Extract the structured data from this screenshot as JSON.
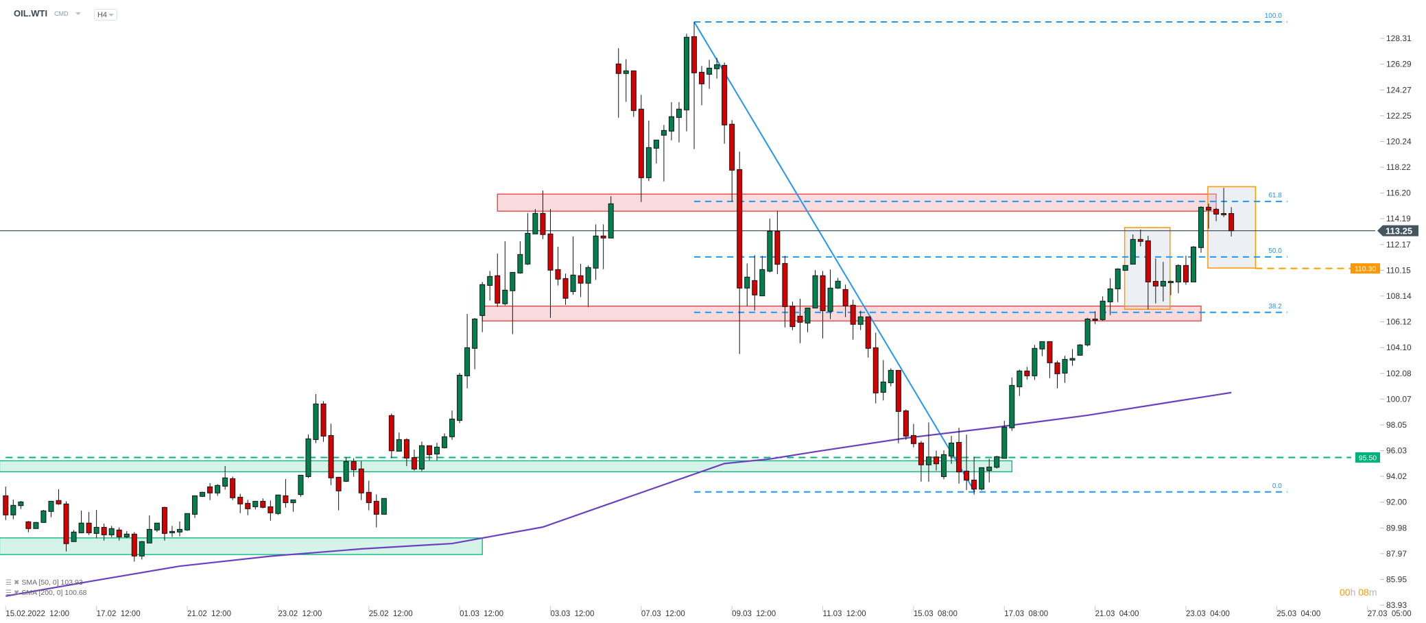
{
  "header": {
    "symbol": "OIL.WTI",
    "class": "CMD",
    "timeframe": "H4"
  },
  "legend": [
    {
      "label": "SMA [50, 0] 103.93"
    },
    {
      "label": "SMA [200, 0] 100.68"
    }
  ],
  "countdown": {
    "hours": "00",
    "h": "h",
    "minutes": "08",
    "m": "m"
  },
  "colors": {
    "up": "#00804f",
    "down": "#d50000",
    "fib": "#2196f3",
    "sma200": "#6a3fc2",
    "orange": "#ff9800",
    "green_zone": "#00b37a",
    "red_zone": "#e53935",
    "price_line": "#455560"
  },
  "chart_data": {
    "type": "candlestick",
    "instrument": "OIL.WTI",
    "interval": "H4",
    "ylim": [
      83.93,
      128.31
    ],
    "y_ticks": [
      "128.31",
      "126.29",
      "124.27",
      "122.25",
      "120.24",
      "118.22",
      "116.20",
      "114.19",
      "112.17",
      "110.15",
      "108.14",
      "106.12",
      "104.10",
      "102.08",
      "100.07",
      "98.05",
      "96.03",
      "94.02",
      "92.00",
      "89.98",
      "87.97",
      "85.95",
      "83.93"
    ],
    "x_ticks": [
      {
        "bar": 0,
        "label": "15.02.2022  12:00"
      },
      {
        "bar": 12,
        "label": "17.02  12:00"
      },
      {
        "bar": 24,
        "label": "21.02  12:00"
      },
      {
        "bar": 36,
        "label": "23.02  12:00"
      },
      {
        "bar": 48,
        "label": "25.02  12:00"
      },
      {
        "bar": 60,
        "label": "01.03  12:00"
      },
      {
        "bar": 72,
        "label": "03.03  12:00"
      },
      {
        "bar": 84,
        "label": "07.03  12:00"
      },
      {
        "bar": 96,
        "label": "09.03  12:00"
      },
      {
        "bar": 108,
        "label": "11.03  12:00"
      },
      {
        "bar": 120,
        "label": "15.03  08:00"
      },
      {
        "bar": 132,
        "label": "17.03  08:00"
      },
      {
        "bar": 144,
        "label": "21.03  04:00"
      },
      {
        "bar": 156,
        "label": "23.03  04:00"
      },
      {
        "bar": 168,
        "label": "25.03  04:00"
      },
      {
        "bar": 180,
        "label": "27.03  05:00"
      }
    ],
    "ohlc": [
      [
        92.5,
        93.22,
        90.6,
        91.0
      ],
      [
        91.0,
        92.2,
        90.66,
        91.75
      ],
      [
        91.73,
        92.09,
        91.46,
        92.02
      ],
      [
        90.46,
        90.53,
        89.64,
        89.93
      ],
      [
        89.93,
        90.45,
        89.93,
        90.41
      ],
      [
        90.41,
        91.39,
        90.41,
        91.32
      ],
      [
        91.27,
        92.1,
        90.82,
        92.07
      ],
      [
        92.13,
        93.0,
        91.79,
        91.86
      ],
      [
        91.86,
        92.07,
        88.14,
        88.75
      ],
      [
        88.91,
        89.82,
        88.91,
        89.66
      ],
      [
        89.6,
        91.34,
        89.6,
        90.36
      ],
      [
        90.36,
        91.23,
        89.43,
        89.6
      ],
      [
        89.55,
        91.39,
        89.17,
        90.03
      ],
      [
        90.03,
        90.32,
        88.99,
        89.44
      ],
      [
        89.44,
        90.14,
        89.26,
        89.93
      ],
      [
        89.82,
        90.03,
        88.99,
        89.28
      ],
      [
        89.28,
        89.73,
        89.19,
        89.5
      ],
      [
        89.5,
        89.66,
        87.35,
        87.78
      ],
      [
        87.78,
        88.96,
        87.51,
        88.91
      ],
      [
        88.8,
        90.96,
        88.8,
        89.87
      ],
      [
        89.82,
        90.36,
        89.66,
        90.36
      ],
      [
        91.59,
        91.64,
        88.99,
        89.55
      ],
      [
        89.6,
        90.14,
        89.28,
        89.71
      ],
      [
        89.66,
        90.48,
        89.32,
        89.87
      ],
      [
        89.82,
        91.11,
        89.75,
        91.11
      ],
      [
        91.05,
        92.5,
        90.77,
        92.5
      ],
      [
        92.45,
        92.82,
        92.4,
        92.77
      ],
      [
        93.2,
        93.48,
        92.16,
        92.72
      ],
      [
        92.72,
        93.41,
        92.5,
        93.31
      ],
      [
        93.25,
        94.83,
        92.98,
        93.9
      ],
      [
        93.84,
        94.0,
        92.16,
        92.34
      ],
      [
        92.39,
        92.66,
        91.14,
        91.86
      ],
      [
        91.91,
        92.18,
        90.98,
        91.48
      ],
      [
        91.64,
        92.07,
        91.43,
        92.07
      ],
      [
        92.07,
        92.29,
        91.52,
        91.59
      ],
      [
        91.64,
        92.13,
        90.55,
        91.16
      ],
      [
        91.11,
        92.56,
        91.0,
        92.56
      ],
      [
        92.5,
        93.81,
        91.57,
        91.96
      ],
      [
        91.96,
        92.18,
        91.25,
        92.18
      ],
      [
        92.59,
        94.11,
        92.43,
        94.11
      ],
      [
        94.0,
        97.3,
        93.9,
        96.96
      ],
      [
        96.9,
        100.46,
        96.62,
        99.69
      ],
      [
        99.69,
        99.91,
        96.72,
        97.17
      ],
      [
        97.22,
        98.14,
        93.34,
        93.9
      ],
      [
        93.95,
        93.95,
        91.36,
        92.88
      ],
      [
        93.63,
        95.51,
        93.58,
        95.18
      ],
      [
        95.18,
        95.45,
        93.99,
        94.54
      ],
      [
        94.6,
        95.22,
        92.16,
        92.72
      ],
      [
        92.77,
        93.68,
        91.36,
        91.96
      ],
      [
        92.07,
        92.61,
        90.02,
        91.05
      ],
      [
        91.05,
        92.29,
        91.05,
        92.29
      ],
      [
        98.78,
        98.94,
        95.45,
        96.02
      ],
      [
        95.99,
        97.45,
        95.99,
        96.9
      ],
      [
        96.9,
        97.0,
        94.82,
        95.45
      ],
      [
        95.49,
        96.11,
        94.47,
        94.59
      ],
      [
        94.59,
        96.74,
        94.43,
        96.42
      ],
      [
        96.42,
        96.42,
        95.27,
        95.72
      ],
      [
        95.77,
        96.65,
        95.27,
        96.31
      ],
      [
        96.26,
        97.38,
        96.2,
        97.12
      ],
      [
        97.12,
        99.17,
        96.88,
        98.51
      ],
      [
        98.4,
        102.12,
        98.19,
        101.94
      ],
      [
        101.89,
        106.74,
        100.91,
        104.09
      ],
      [
        104.04,
        106.42,
        102.41,
        106.34
      ],
      [
        106.61,
        109.24,
        105.31,
        109.03
      ],
      [
        108.97,
        110.1,
        107.78,
        109.67
      ],
      [
        109.73,
        111.46,
        107.29,
        107.58
      ],
      [
        107.53,
        112.43,
        107.4,
        108.6
      ],
      [
        108.55,
        109.99,
        105.15,
        109.99
      ],
      [
        109.94,
        112.43,
        109.89,
        111.39
      ],
      [
        110.64,
        114.63,
        110.57,
        113.05
      ],
      [
        113.0,
        114.95,
        113.0,
        114.61
      ],
      [
        114.61,
        116.4,
        112.6,
        112.95
      ],
      [
        113.0,
        114.95,
        106.43,
        110.16
      ],
      [
        110.21,
        112.0,
        108.96,
        109.46
      ],
      [
        109.51,
        109.89,
        107.45,
        107.96
      ],
      [
        108.49,
        112.8,
        108.24,
        109.78
      ],
      [
        109.73,
        110.66,
        108.06,
        109.14
      ],
      [
        109.14,
        110.53,
        107.26,
        110.37
      ],
      [
        110.32,
        113.75,
        109.4,
        112.84
      ],
      [
        112.84,
        113.75,
        110.24,
        112.68
      ],
      [
        112.68,
        115.95,
        112.68,
        115.36
      ],
      [
        126.31,
        127.54,
        122.1,
        125.56
      ],
      [
        125.56,
        126.68,
        123.34,
        125.77
      ],
      [
        125.77,
        125.77,
        122.16,
        122.66
      ],
      [
        122.77,
        123.89,
        115.5,
        117.4
      ],
      [
        117.4,
        121.87,
        117.13,
        119.76
      ],
      [
        119.71,
        120.35,
        118.51,
        120.35
      ],
      [
        120.73,
        121.53,
        117.11,
        121.1
      ],
      [
        121.05,
        123.32,
        120.33,
        122.18
      ],
      [
        122.12,
        123.32,
        120.17,
        122.77
      ],
      [
        122.71,
        128.67,
        121.03,
        128.4
      ],
      [
        128.45,
        129.6,
        119.64,
        125.61
      ],
      [
        125.66,
        126.15,
        123.07,
        124.75
      ],
      [
        125.5,
        126.63,
        124.36,
        125.98
      ],
      [
        125.93,
        126.79,
        125.16,
        126.25
      ],
      [
        126.2,
        126.42,
        120.07,
        121.53
      ],
      [
        121.59,
        121.91,
        115.52,
        117.99
      ],
      [
        118.04,
        119.44,
        103.6,
        108.76
      ],
      [
        108.76,
        110.69,
        107.35,
        109.62
      ],
      [
        109.35,
        111.34,
        106.99,
        108.22
      ],
      [
        108.15,
        111.28,
        108.15,
        110.21
      ],
      [
        110.08,
        114.2,
        109.99,
        113.21
      ],
      [
        113.21,
        114.82,
        109.85,
        110.62
      ],
      [
        110.69,
        111.28,
        105.68,
        107.31
      ],
      [
        107.35,
        107.7,
        105.47,
        105.74
      ],
      [
        106.56,
        107.92,
        104.45,
        106.08
      ],
      [
        106.02,
        107.2,
        105.31,
        107.2
      ],
      [
        107.2,
        110.17,
        107.2,
        109.73
      ],
      [
        109.73,
        110.1,
        104.82,
        106.99
      ],
      [
        106.94,
        110.21,
        106.33,
        108.76
      ],
      [
        108.76,
        109.56,
        108.7,
        109.3
      ],
      [
        108.65,
        109.03,
        106.49,
        107.36
      ],
      [
        107.42,
        107.85,
        104.72,
        105.92
      ],
      [
        105.92,
        106.99,
        105.47,
        106.51
      ],
      [
        106.51,
        106.51,
        103.32,
        104.04
      ],
      [
        104.09,
        105.27,
        99.73,
        100.55
      ],
      [
        100.6,
        103.12,
        99.96,
        101.41
      ],
      [
        101.35,
        102.48,
        101.07,
        102.32
      ],
      [
        102.32,
        102.32,
        96.61,
        99.1
      ],
      [
        99.15,
        99.26,
        96.88,
        97.17
      ],
      [
        97.22,
        98.13,
        96.29,
        96.58
      ],
      [
        96.63,
        96.79,
        93.6,
        94.92
      ],
      [
        94.92,
        98.24,
        93.6,
        95.54
      ],
      [
        95.54,
        96.04,
        94.47,
        95.0
      ],
      [
        94.0,
        96.06,
        93.79,
        95.72
      ],
      [
        95.61,
        97.19,
        95.0,
        96.63
      ],
      [
        96.68,
        97.83,
        93.45,
        94.36
      ],
      [
        94.43,
        97.29,
        92.95,
        93.72
      ],
      [
        93.73,
        95.56,
        92.59,
        93.02
      ],
      [
        93.02,
        94.7,
        92.91,
        94.7
      ],
      [
        94.47,
        95.4,
        93.55,
        94.75
      ],
      [
        94.73,
        95.63,
        94.63,
        95.56
      ],
      [
        95.43,
        98.37,
        95.43,
        97.87
      ],
      [
        97.82,
        101.75,
        97.58,
        101.14
      ],
      [
        101.03,
        102.37,
        100.32,
        102.27
      ],
      [
        102.27,
        102.59,
        101.6,
        101.89
      ],
      [
        101.89,
        104.31,
        101.57,
        104.04
      ],
      [
        103.99,
        104.57,
        103.43,
        104.57
      ],
      [
        104.57,
        104.57,
        101.71,
        102.91
      ],
      [
        102.91,
        103.07,
        100.91,
        102.05
      ],
      [
        102.1,
        103.45,
        101.34,
        103.18
      ],
      [
        103.12,
        103.98,
        102.68,
        103.25
      ],
      [
        103.5,
        104.38,
        103.5,
        104.31
      ],
      [
        104.31,
        106.43,
        104.2,
        106.34
      ],
      [
        106.34,
        106.95,
        105.95,
        106.23
      ],
      [
        106.29,
        108.11,
        106.2,
        107.74
      ],
      [
        107.68,
        109.53,
        106.65,
        108.7
      ],
      [
        108.7,
        110.31,
        107.66,
        110.26
      ],
      [
        110.15,
        110.53,
        110.15,
        110.53
      ],
      [
        110.63,
        112.96,
        110.63,
        112.57
      ],
      [
        112.57,
        113.34,
        112.03,
        112.41
      ],
      [
        112.46,
        112.85,
        107.09,
        109.24
      ],
      [
        109.29,
        111.08,
        107.56,
        108.92
      ],
      [
        108.92,
        110.81,
        107.72,
        109.29
      ],
      [
        109.18,
        109.35,
        108.2,
        109.29
      ],
      [
        109.24,
        110.63,
        108.36,
        110.53
      ],
      [
        110.53,
        111.3,
        109.02,
        109.24
      ],
      [
        109.24,
        112.05,
        109.24,
        111.98
      ],
      [
        111.93,
        115.16,
        111.53,
        115.09
      ],
      [
        115.09,
        115.37,
        113.41,
        114.87
      ],
      [
        114.93,
        115.03,
        114.0,
        114.55
      ],
      [
        114.6,
        116.61,
        114.32,
        114.5
      ],
      [
        114.6,
        115.1,
        112.8,
        113.25
      ]
    ],
    "sma200": [
      [
        0,
        84.64
      ],
      [
        11,
        85.78
      ],
      [
        23,
        86.99
      ],
      [
        35,
        87.77
      ],
      [
        47,
        88.34
      ],
      [
        59,
        88.76
      ],
      [
        63,
        89.19
      ],
      [
        71,
        90.05
      ],
      [
        83,
        92.54
      ],
      [
        95,
        95.02
      ],
      [
        101,
        95.38
      ],
      [
        107,
        95.95
      ],
      [
        119,
        97.02
      ],
      [
        131,
        97.87
      ],
      [
        143,
        98.8
      ],
      [
        155,
        99.93
      ],
      [
        162,
        100.58
      ]
    ],
    "zones": [
      {
        "kind": "resistance",
        "color": "red",
        "from_bar": 65,
        "to_bar": 160,
        "low": 114.78,
        "high": 116.12
      },
      {
        "kind": "resistance",
        "color": "red",
        "from_bar": 63,
        "to_bar": 158,
        "low": 106.19,
        "high": 107.35
      },
      {
        "kind": "support",
        "color": "green",
        "from_bar": -0.8,
        "to_bar": 133,
        "low": 94.38,
        "high": 95.24
      },
      {
        "kind": "support",
        "color": "green",
        "from_bar": -0.8,
        "to_bar": 63,
        "low": 87.9,
        "high": 89.2
      }
    ],
    "boxes": [
      {
        "from_bar": 147.9,
        "to_bar": 153.9,
        "low": 107.1,
        "high": 113.5
      },
      {
        "from_bar": 158.9,
        "to_bar": 165.2,
        "low": 110.33,
        "high": 116.7
      }
    ],
    "fibonacci": {
      "from_bar": 91,
      "to_bar": 169.4,
      "high": 129.6,
      "low": 92.8,
      "levels": [
        {
          "ratio": 1.0,
          "label": "100.0"
        },
        {
          "ratio": 0.618,
          "label": "61.8"
        },
        {
          "ratio": 0.5,
          "label": "50.0"
        },
        {
          "ratio": 0.382,
          "label": "38.2"
        },
        {
          "ratio": 0.0,
          "label": "0.0"
        }
      ]
    },
    "trendline": {
      "from": [
        91,
        129.6
      ],
      "to": [
        128.1,
        92.8
      ]
    },
    "horizontal_lines": [
      {
        "price": 95.5,
        "label": "95.50",
        "color": "green",
        "from_bar": 0
      },
      {
        "price": 110.3,
        "label": "110.30",
        "color": "orange",
        "from_bar": 165.2
      }
    ],
    "last_price": {
      "price": 113.25,
      "label": "113.25"
    }
  }
}
